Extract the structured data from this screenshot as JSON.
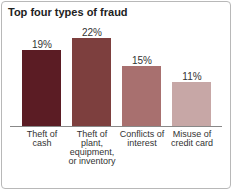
{
  "chart_data": {
    "type": "bar",
    "title": "Top four types of fraud",
    "categories": [
      "Theft of cash",
      "Theft of plant, equipment, or inventory",
      "Conflicts of interest",
      "Misuse of credit card"
    ],
    "values": [
      19,
      22,
      15,
      11
    ],
    "value_labels": [
      "19%",
      "22%",
      "15%",
      "11%"
    ],
    "colors": [
      "#5b1c24",
      "#7d3f3e",
      "#a8706f",
      "#c7a7a6"
    ],
    "data_labels": true,
    "grid": false,
    "tick_labels": "x"
  }
}
